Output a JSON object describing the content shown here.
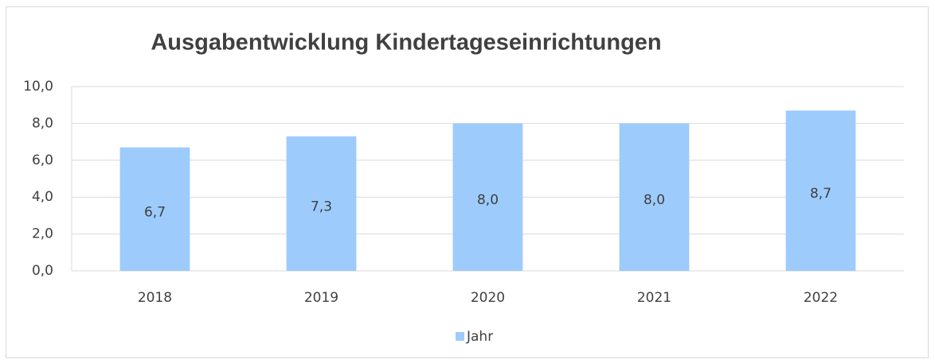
{
  "chart_data": {
    "type": "bar",
    "title": "Ausgabentwicklung Kindertageseinrichtungen",
    "categories": [
      "2018",
      "2019",
      "2020",
      "2021",
      "2022"
    ],
    "series": [
      {
        "name": "Jahr",
        "color": "#9dcbfc",
        "values": [
          6.7,
          7.3,
          8.0,
          8.0,
          8.7
        ],
        "value_labels": [
          "6,7",
          "7,3",
          "8,0",
          "8,0",
          "8,7"
        ]
      }
    ],
    "ylim": [
      0,
      10
    ],
    "yticks": [
      {
        "value": 0,
        "label": "0,0"
      },
      {
        "value": 2,
        "label": "2,0"
      },
      {
        "value": 4,
        "label": "4,0"
      },
      {
        "value": 6,
        "label": "6,0"
      },
      {
        "value": 8,
        "label": "8,0"
      },
      {
        "value": 10,
        "label": "10,0"
      }
    ],
    "grid": true,
    "legend": "bottom"
  }
}
